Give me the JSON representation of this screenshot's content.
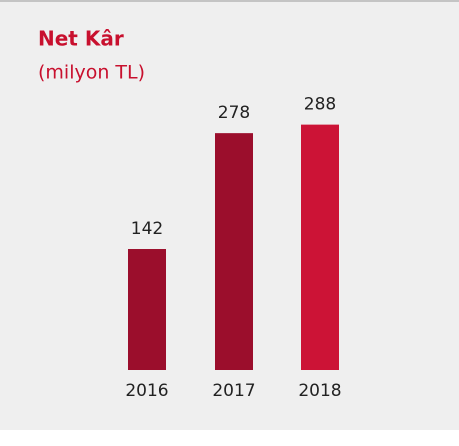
{
  "chart_data": {
    "type": "bar",
    "title": "Net Kâr",
    "subtitle": "(milyon TL)",
    "categories": [
      "2016",
      "2017",
      "2018"
    ],
    "values": [
      142,
      278,
      288
    ],
    "colors": [
      "#9b0e2c",
      "#9b0e2c",
      "#cc1336"
    ],
    "title_color": "#c8102e"
  }
}
